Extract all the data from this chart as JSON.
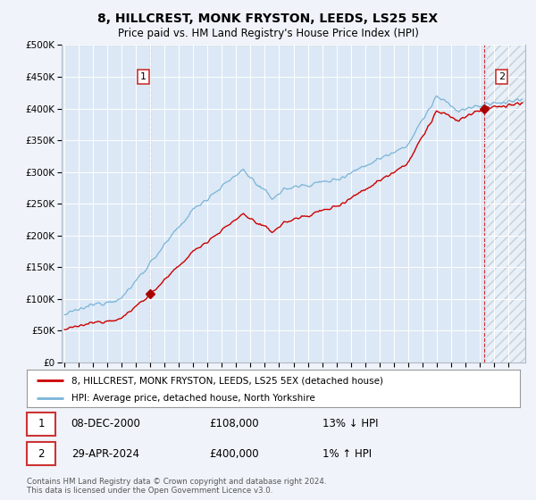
{
  "title": "8, HILLCREST, MONK FRYSTON, LEEDS, LS25 5EX",
  "subtitle": "Price paid vs. HM Land Registry's House Price Index (HPI)",
  "legend_line1": "8, HILLCREST, MONK FRYSTON, LEEDS, LS25 5EX (detached house)",
  "legend_line2": "HPI: Average price, detached house, North Yorkshire",
  "annotation1_date": "08-DEC-2000",
  "annotation1_price": "£108,000",
  "annotation1_hpi": "13% ↓ HPI",
  "annotation2_date": "29-APR-2024",
  "annotation2_price": "£400,000",
  "annotation2_hpi": "1% ↑ HPI",
  "footer": "Contains HM Land Registry data © Crown copyright and database right 2024.\nThis data is licensed under the Open Government Licence v3.0.",
  "hpi_color": "#7ab4d8",
  "price_color": "#cc0000",
  "marker_color": "#aa0000",
  "background_color": "#f0f4fa",
  "plot_bg": "#dce8f5",
  "grid_color": "#ffffff",
  "ylim": [
    0,
    500000
  ],
  "yticks": [
    0,
    50000,
    100000,
    150000,
    200000,
    250000,
    300000,
    350000,
    400000,
    450000,
    500000
  ],
  "sale1_x": 2001.0,
  "sale1_y": 108000,
  "sale2_x": 2024.33,
  "sale2_y": 400000,
  "xlim_min": 1994.8,
  "xlim_max": 2027.2,
  "hatch_start": 2024.5
}
